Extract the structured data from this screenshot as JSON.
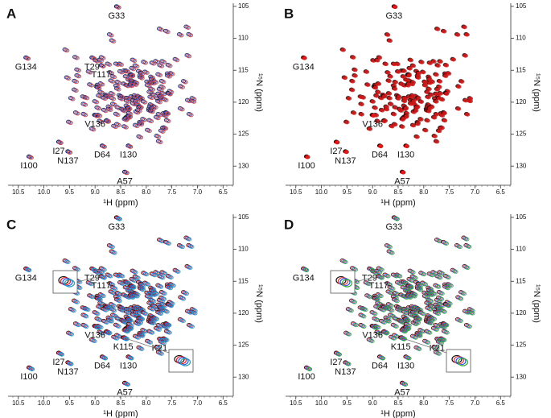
{
  "chart_data": {
    "type": "scatter",
    "axes": {
      "x_label": "¹H (ppm)",
      "y_label": "¹⁵N (ppm)",
      "xlim": [
        10.7,
        6.3
      ],
      "ylim": [
        104,
        133
      ],
      "xticks": [
        10.5,
        {
          "value": 10,
          "label": "10.0"
        },
        9.5,
        {
          "value": 9,
          "label": "9.0"
        },
        8.5,
        {
          "value": 8,
          "label": "8.0"
        },
        7.5,
        {
          "value": 7,
          "label": "7.0"
        },
        6.5
      ],
      "yticks": [
        105,
        110,
        115,
        120,
        125,
        130
      ]
    },
    "panels": [
      {
        "letter": "A",
        "colors": [
          "#1a1a1a",
          "#4a5ee8",
          "#d23a3a"
        ],
        "peaks": [
          {
            "label": "G33",
            "x": 8.58,
            "y": 105
          },
          {
            "label": "T29",
            "x": 9.06,
            "y": 113
          },
          {
            "label": "T117",
            "x": 8.88,
            "y": 114.2
          },
          {
            "label": "G134",
            "x": 10.35,
            "y": 113
          },
          {
            "label": "V136",
            "x": 9.0,
            "y": 122
          },
          {
            "label": "I27",
            "x": 9.71,
            "y": 126.2
          },
          {
            "label": "I100",
            "x": 10.29,
            "y": 128.5
          },
          {
            "label": "N137",
            "x": 9.53,
            "y": 127.7
          },
          {
            "label": "D64",
            "x": 8.86,
            "y": 126.8
          },
          {
            "label": "I130",
            "x": 8.35,
            "y": 126.8
          },
          {
            "label": "A57",
            "x": 8.42,
            "y": 130.9
          }
        ]
      },
      {
        "letter": "B",
        "colors": [
          "#111111",
          "#e01818"
        ],
        "peaks": [
          {
            "label": "G33",
            "x": 8.58,
            "y": 105
          },
          {
            "label": "G134",
            "x": 10.35,
            "y": 113
          },
          {
            "label": "V136",
            "x": 9.0,
            "y": 122
          },
          {
            "label": "I27",
            "x": 9.71,
            "y": 126.2
          },
          {
            "label": "I100",
            "x": 10.29,
            "y": 128.5
          },
          {
            "label": "N137",
            "x": 9.53,
            "y": 127.7
          },
          {
            "label": "D64",
            "x": 8.86,
            "y": 126.8
          },
          {
            "label": "I130",
            "x": 8.35,
            "y": 126.8
          },
          {
            "label": "A57",
            "x": 8.42,
            "y": 130.9
          }
        ]
      },
      {
        "letter": "C",
        "colors": [
          "#111111",
          "#e02020",
          "#3050e0",
          "#20a0c0"
        ],
        "peaks": [
          {
            "label": "G33",
            "x": 8.58,
            "y": 105
          },
          {
            "label": "T29",
            "x": 9.06,
            "y": 113
          },
          {
            "label": "T117",
            "x": 8.88,
            "y": 114.2
          },
          {
            "label": "G134",
            "x": 10.35,
            "y": 113
          },
          {
            "label": "V136",
            "x": 9.0,
            "y": 122
          },
          {
            "label": "I27",
            "x": 9.71,
            "y": 126.2
          },
          {
            "label": "I100",
            "x": 10.29,
            "y": 128.5
          },
          {
            "label": "N137",
            "x": 9.53,
            "y": 127.7
          },
          {
            "label": "D64",
            "x": 8.86,
            "y": 126.8
          },
          {
            "label": "I130",
            "x": 8.35,
            "y": 126.8
          },
          {
            "label": "A57",
            "x": 8.42,
            "y": 130.9
          },
          {
            "label": "K21",
            "x": 7.74,
            "y": 124
          },
          {
            "label": "K115",
            "x": 8.45,
            "y": 123.8
          }
        ]
      },
      {
        "letter": "D",
        "colors": [
          "#111111",
          "#e04040",
          "#3050e0",
          "#30b040"
        ],
        "peaks": [
          {
            "label": "G33",
            "x": 8.58,
            "y": 105
          },
          {
            "label": "T29",
            "x": 9.06,
            "y": 113
          },
          {
            "label": "T117",
            "x": 8.88,
            "y": 114.2
          },
          {
            "label": "G134",
            "x": 10.35,
            "y": 113
          },
          {
            "label": "V136",
            "x": 9.0,
            "y": 122
          },
          {
            "label": "I27",
            "x": 9.71,
            "y": 126.2
          },
          {
            "label": "I100",
            "x": 10.29,
            "y": 128.5
          },
          {
            "label": "N137",
            "x": 9.53,
            "y": 127.7
          },
          {
            "label": "D64",
            "x": 8.86,
            "y": 126.8
          },
          {
            "label": "I130",
            "x": 8.35,
            "y": 126.8
          },
          {
            "label": "A57",
            "x": 8.42,
            "y": 130.9
          },
          {
            "label": "K21",
            "x": 7.74,
            "y": 124
          },
          {
            "label": "K115",
            "x": 8.45,
            "y": 123.8
          }
        ]
      }
    ]
  }
}
